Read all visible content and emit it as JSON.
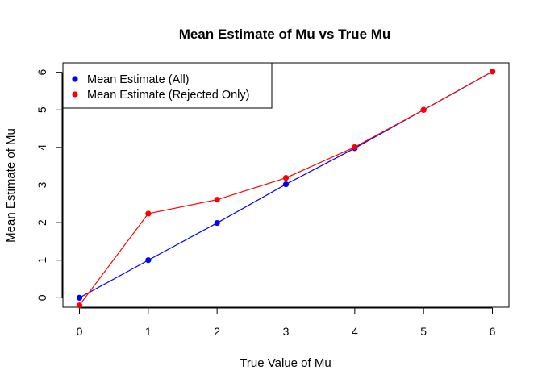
{
  "chart_data": {
    "type": "line",
    "title": "Mean Estimate of Mu vs True Mu",
    "xlabel": "True Value of Mu",
    "ylabel": "Mean Estimate of Mu",
    "x": [
      0,
      1,
      2,
      3,
      4,
      5,
      6
    ],
    "xlim": [
      -0.24,
      6.24
    ],
    "ylim": [
      -0.25,
      6.25
    ],
    "xticks": [
      0,
      1,
      2,
      3,
      4,
      5,
      6
    ],
    "yticks": [
      0,
      1,
      2,
      3,
      4,
      5,
      6
    ],
    "grid": false,
    "legend_position": "top-left",
    "series": [
      {
        "name": "Mean Estimate (All)",
        "color": "#0000ff",
        "values": [
          0.0,
          1.0,
          1.99,
          3.02,
          3.98,
          5.0,
          6.02
        ]
      },
      {
        "name": "Mean Estimate (Rejected Only)",
        "color": "#ff0000",
        "values": [
          -0.2,
          2.24,
          2.61,
          3.19,
          4.01,
          5.0,
          6.02
        ]
      }
    ]
  }
}
